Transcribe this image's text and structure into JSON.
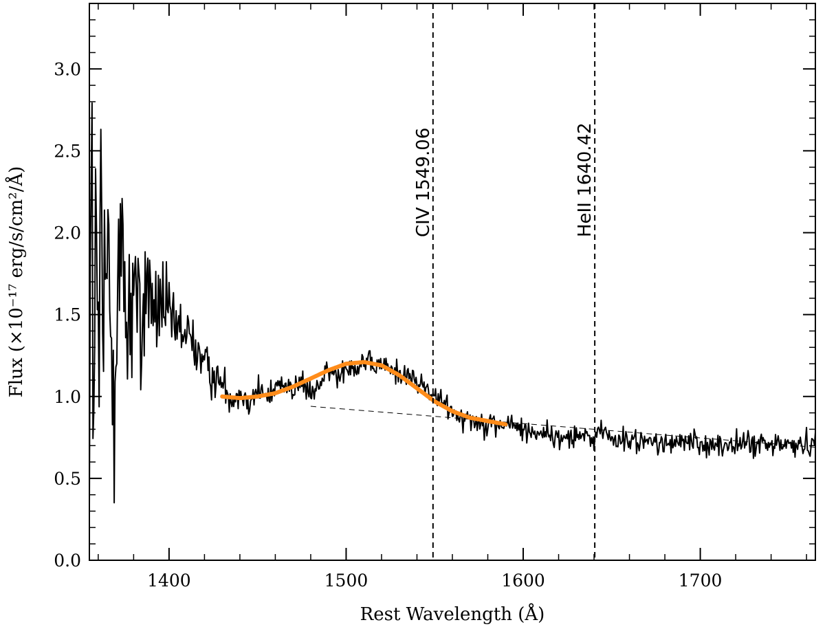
{
  "chart_data": {
    "type": "line",
    "xlabel": "Rest Wavelength (Å)",
    "ylabel": "Flux (×10⁻¹⁷ erg/s/cm²/Å)",
    "xlim": [
      1355,
      1765
    ],
    "ylim": [
      0.0,
      3.4
    ],
    "x_ticks": [
      1400,
      1500,
      1600,
      1700
    ],
    "x_tick_labels": [
      "1400",
      "1500",
      "1600",
      "1700"
    ],
    "y_ticks": [
      0.0,
      0.5,
      1.0,
      1.5,
      2.0,
      2.5,
      3.0
    ],
    "y_tick_labels": [
      "0.0",
      "0.5",
      "1.0",
      "1.5",
      "2.0",
      "2.5",
      "3.0"
    ],
    "grid": false,
    "colors": {
      "spectrum": "#000000",
      "fit": "#ff8c1a",
      "continuum": "#000000",
      "lines": "#000000"
    },
    "series": [
      {
        "key": "spectrum",
        "style": "solid-thin",
        "x": [
          1356,
          1360,
          1364,
          1368,
          1372,
          1376,
          1380,
          1384,
          1388,
          1392,
          1396,
          1400,
          1405,
          1410,
          1415,
          1420,
          1425,
          1430,
          1435,
          1440,
          1445,
          1450,
          1455,
          1460,
          1465,
          1470,
          1475,
          1480,
          1485,
          1490,
          1495,
          1500,
          1505,
          1510,
          1515,
          1520,
          1525,
          1530,
          1535,
          1540,
          1545,
          1550,
          1555,
          1560,
          1565,
          1570,
          1575,
          1580,
          1585,
          1590,
          1595,
          1600,
          1605,
          1610,
          1615,
          1620,
          1625,
          1630,
          1635,
          1640,
          1645,
          1650,
          1655,
          1660,
          1665,
          1670,
          1675,
          1680,
          1685,
          1690,
          1695,
          1700,
          1705,
          1710,
          1715,
          1720,
          1725,
          1730,
          1735,
          1740,
          1745,
          1750,
          1755,
          1760,
          1765
        ],
        "y": [
          1.5,
          1.3,
          1.6,
          1.45,
          1.8,
          1.5,
          1.7,
          1.35,
          1.75,
          1.45,
          1.6,
          1.45,
          1.4,
          1.38,
          1.3,
          1.2,
          1.12,
          1.08,
          1.0,
          1.02,
          0.98,
          1.04,
          0.99,
          1.05,
          1.1,
          1.03,
          1.09,
          1.0,
          1.08,
          1.15,
          1.12,
          1.2,
          1.18,
          1.22,
          1.17,
          1.2,
          1.16,
          1.15,
          1.12,
          1.09,
          1.05,
          1.0,
          0.95,
          0.92,
          0.88,
          0.87,
          0.84,
          0.85,
          0.82,
          0.83,
          0.82,
          0.8,
          0.78,
          0.79,
          0.77,
          0.73,
          0.76,
          0.78,
          0.74,
          0.75,
          0.8,
          0.74,
          0.73,
          0.72,
          0.74,
          0.71,
          0.73,
          0.7,
          0.72,
          0.71,
          0.73,
          0.7,
          0.72,
          0.69,
          0.71,
          0.7,
          0.72,
          0.7,
          0.71,
          0.69,
          0.72,
          0.7,
          0.71,
          0.7,
          0.72
        ],
        "noise_sigma_start": 2.2,
        "noise_sigma_base": 0.08,
        "noise_falloff_A": 18
      },
      {
        "key": "fit",
        "style": "solid-thick",
        "x": [
          1430,
          1440,
          1450,
          1460,
          1470,
          1480,
          1490,
          1500,
          1510,
          1520,
          1530,
          1540,
          1550,
          1560,
          1570,
          1580,
          1590
        ],
        "y": [
          1.0,
          0.99,
          1.0,
          1.02,
          1.06,
          1.11,
          1.16,
          1.2,
          1.21,
          1.19,
          1.13,
          1.05,
          0.97,
          0.91,
          0.87,
          0.85,
          0.83
        ]
      },
      {
        "key": "continuum",
        "style": "dashed-thin",
        "x": [
          1480,
          1765
        ],
        "y": [
          0.94,
          0.69
        ]
      }
    ],
    "vertical_lines": [
      {
        "x": 1549.06,
        "label": "CIV 1549.06"
      },
      {
        "x": 1640.42,
        "label": "HeII 1640.42"
      }
    ]
  }
}
